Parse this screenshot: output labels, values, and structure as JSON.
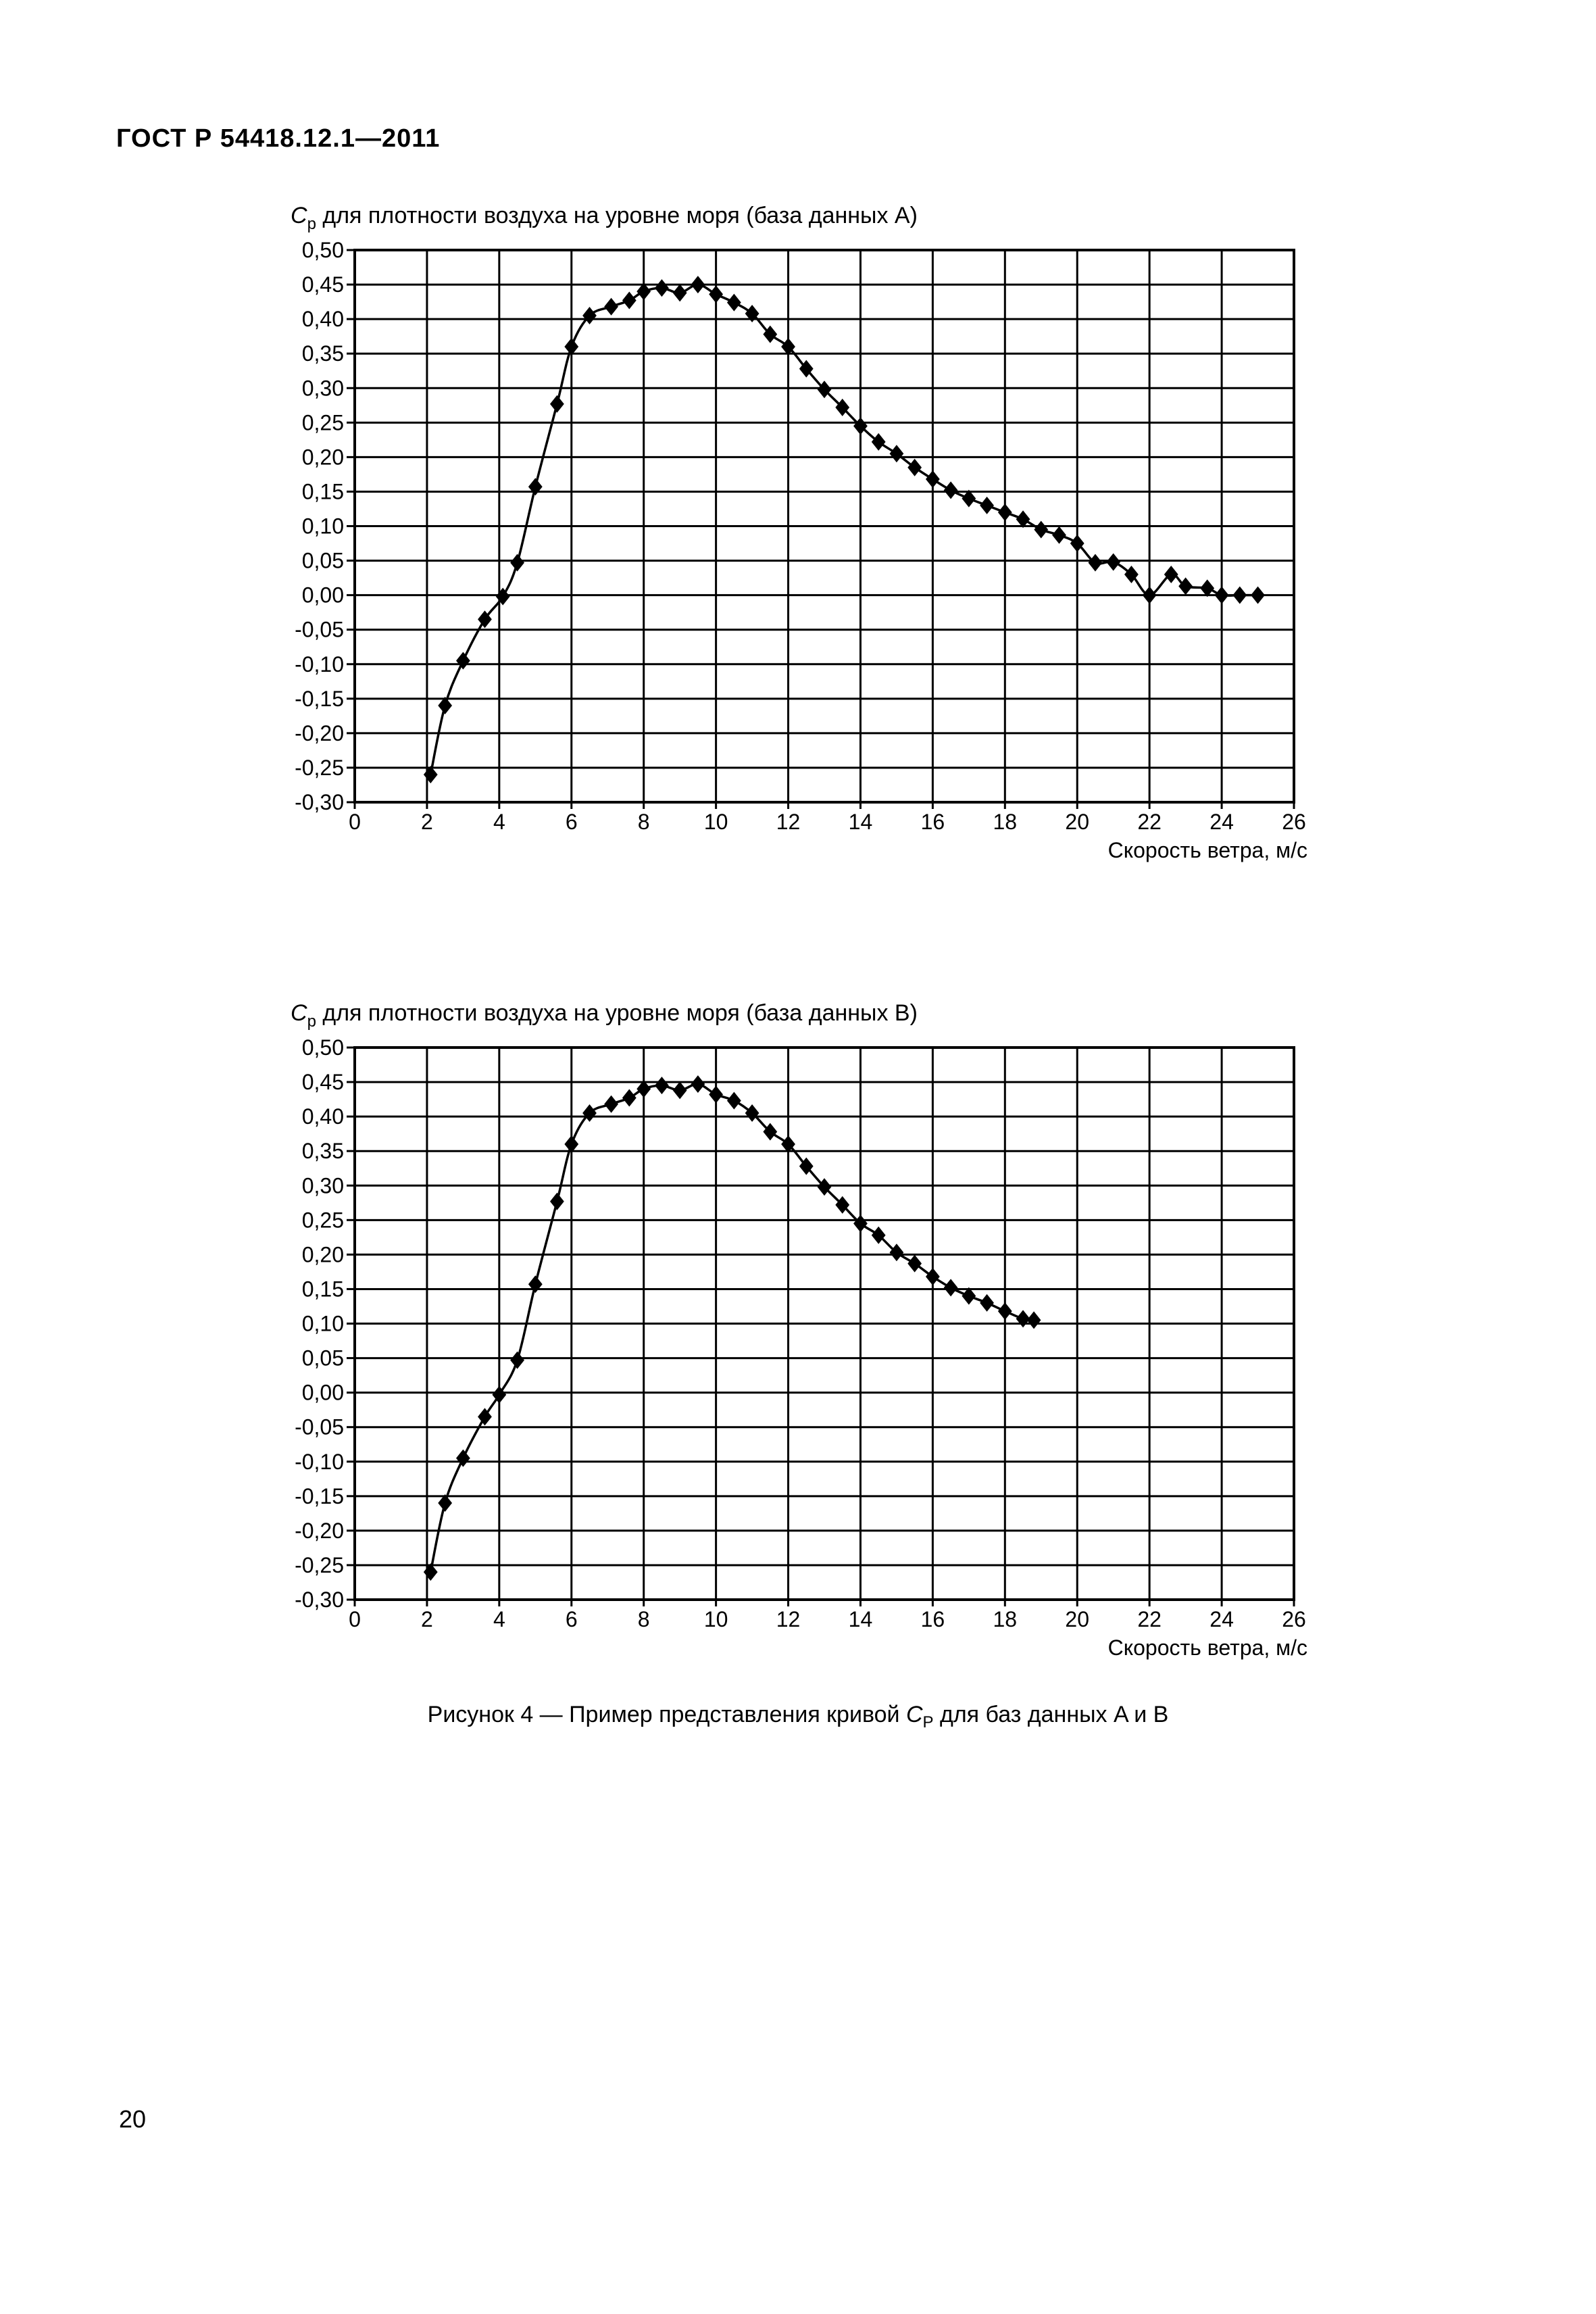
{
  "document": {
    "header": "ГОСТ Р 54418.12.1—2011",
    "page_number": "20",
    "caption_prefix": "Рисунок 4 — Пример представления кривой ",
    "caption_symbol": "C",
    "caption_subscript": "P",
    "caption_suffix": " для баз данных A и B"
  },
  "chart_data": [
    {
      "type": "line",
      "title_symbol": "C",
      "title_subscript": "p",
      "title": " для плотности воздуха на уровне моря (база данных A)",
      "xlabel": "Скорость ветра, м/с",
      "ylabel": "",
      "xlim": [
        0,
        26
      ],
      "ylim": [
        -0.3,
        0.5
      ],
      "grid": true,
      "x_ticks": [
        "0",
        "2",
        "4",
        "6",
        "8",
        "10",
        "12",
        "14",
        "16",
        "18",
        "20",
        "22",
        "24",
        "26"
      ],
      "y_ticks": [
        "0,50",
        "0,45",
        "0,40",
        "0,35",
        "0,30",
        "0,25",
        "0,20",
        "0,15",
        "0,10",
        "0,05",
        "0,00",
        "-0,05",
        "-0,10",
        "-0,15",
        "-0,20",
        "-0,25",
        "-0,30"
      ],
      "marker": "diamond",
      "series": [
        {
          "name": "A",
          "x": [
            2.1,
            2.5,
            3.0,
            3.6,
            4.1,
            4.5,
            5.0,
            5.6,
            6.0,
            6.5,
            7.1,
            7.6,
            8.0,
            8.5,
            9.0,
            9.5,
            10.0,
            10.5,
            11.0,
            11.5,
            12.0,
            12.5,
            13.0,
            13.5,
            14.0,
            14.5,
            15.0,
            15.5,
            16.0,
            16.5,
            17.0,
            17.5,
            18.0,
            18.5,
            19.0,
            19.5,
            20.0,
            20.5,
            21.0,
            21.5,
            22.0,
            22.6,
            23.0,
            23.6,
            24.0,
            24.5,
            25.0
          ],
          "y": [
            -0.26,
            -0.16,
            -0.095,
            -0.035,
            -0.002,
            0.047,
            0.157,
            0.277,
            0.36,
            0.405,
            0.418,
            0.427,
            0.44,
            0.445,
            0.438,
            0.45,
            0.436,
            0.424,
            0.408,
            0.378,
            0.36,
            0.328,
            0.298,
            0.272,
            0.245,
            0.222,
            0.205,
            0.185,
            0.168,
            0.152,
            0.14,
            0.13,
            0.12,
            0.11,
            0.095,
            0.087,
            0.075,
            0.047,
            0.048,
            0.03,
            0.0,
            0.03,
            0.013,
            0.01,
            0.0,
            0.0,
            0.0
          ]
        }
      ]
    },
    {
      "type": "line",
      "title_symbol": "C",
      "title_subscript": "p",
      "title": " для плотности воздуха на уровне моря (база данных B)",
      "xlabel": "Скорость ветра, м/с",
      "ylabel": "",
      "xlim": [
        0,
        26
      ],
      "ylim": [
        -0.3,
        0.5
      ],
      "grid": true,
      "x_ticks": [
        "0",
        "2",
        "4",
        "6",
        "8",
        "10",
        "12",
        "14",
        "16",
        "18",
        "20",
        "22",
        "24",
        "26"
      ],
      "y_ticks": [
        "0,50",
        "0,45",
        "0,40",
        "0,35",
        "0,30",
        "0,25",
        "0,20",
        "0,15",
        "0,10",
        "0,05",
        "0,00",
        "-0,05",
        "-0,10",
        "-0,15",
        "-0,20",
        "-0,25",
        "-0,30"
      ],
      "marker": "diamond",
      "series": [
        {
          "name": "B",
          "x": [
            2.1,
            2.5,
            3.0,
            3.6,
            4.0,
            4.5,
            5.0,
            5.6,
            6.0,
            6.5,
            7.1,
            7.6,
            8.0,
            8.5,
            9.0,
            9.5,
            10.0,
            10.5,
            11.0,
            11.5,
            12.0,
            12.5,
            13.0,
            13.5,
            14.0,
            14.5,
            15.0,
            15.5,
            16.0,
            16.5,
            17.0,
            17.5,
            18.0,
            18.5,
            18.8
          ],
          "y": [
            -0.26,
            -0.16,
            -0.095,
            -0.035,
            -0.003,
            0.047,
            0.157,
            0.277,
            0.36,
            0.405,
            0.418,
            0.427,
            0.44,
            0.445,
            0.438,
            0.447,
            0.432,
            0.423,
            0.405,
            0.378,
            0.36,
            0.328,
            0.298,
            0.272,
            0.245,
            0.228,
            0.203,
            0.187,
            0.168,
            0.152,
            0.14,
            0.13,
            0.118,
            0.107,
            0.105
          ]
        }
      ]
    }
  ]
}
